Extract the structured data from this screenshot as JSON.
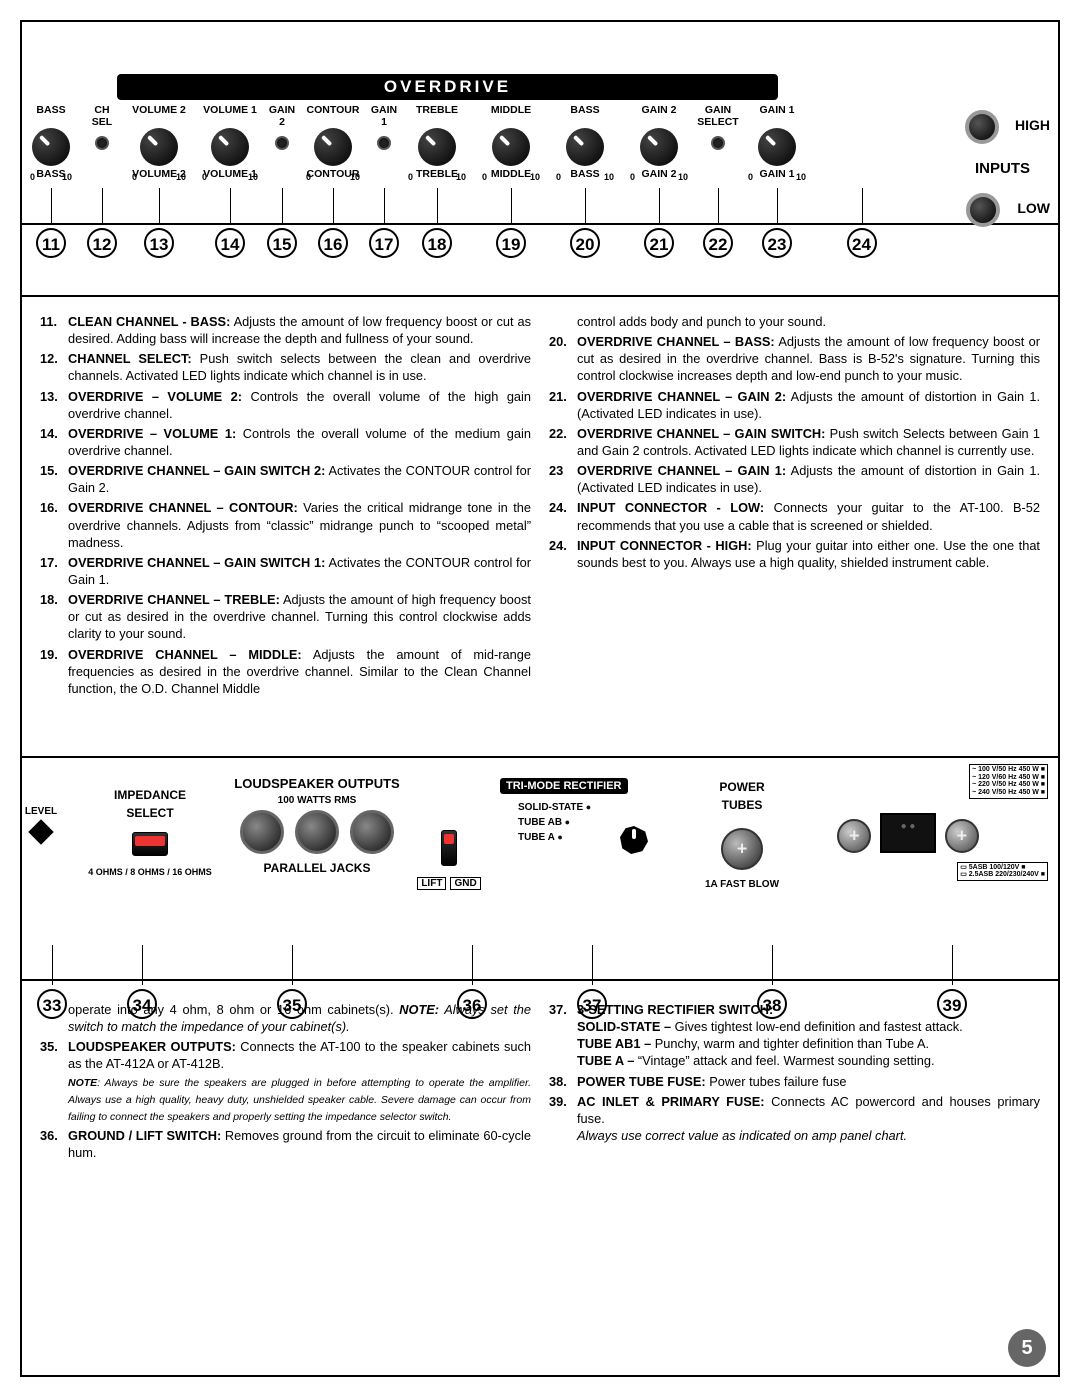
{
  "page_number": "5",
  "front_panel": {
    "section_label": "OVERDRIVE",
    "knobs": [
      {
        "top": "BASS",
        "bot": "BASS",
        "range": [
          "0",
          "10"
        ]
      },
      {
        "top": "CH\nSEL",
        "bot": "",
        "switch": true
      },
      {
        "top": "VOLUME 2",
        "bot": "VOLUME 2",
        "range": [
          "0",
          "10"
        ]
      },
      {
        "top": "VOLUME 1",
        "bot": "VOLUME 1",
        "range": [
          "0",
          "10"
        ]
      },
      {
        "top": "GAIN 2",
        "bot": "",
        "switch": true,
        "small": true
      },
      {
        "top": "CONTOUR",
        "bot": "CONTOUR",
        "range": [
          "0",
          "10"
        ]
      },
      {
        "top": "GAIN 1",
        "bot": "",
        "switch": true,
        "small": true
      },
      {
        "top": "TREBLE",
        "bot": "TREBLE",
        "range": [
          "0",
          "10"
        ]
      },
      {
        "top": "MIDDLE",
        "bot": "MIDDLE",
        "range": [
          "0",
          "10"
        ]
      },
      {
        "top": "BASS",
        "bot": "BASS",
        "range": [
          "0",
          "10"
        ]
      },
      {
        "top": "GAIN 2",
        "bot": "GAIN 2",
        "range": [
          "0",
          "10"
        ]
      },
      {
        "top": "GAIN\nSELECT",
        "bot": "",
        "switch": true
      },
      {
        "top": "GAIN 1",
        "bot": "GAIN 1",
        "range": [
          "0",
          "10"
        ]
      }
    ],
    "inputs": {
      "title": "INPUTS",
      "high": "HIGH",
      "low": "LOW"
    },
    "callouts": [
      "11",
      "12",
      "13",
      "14",
      "15",
      "16",
      "17",
      "18",
      "19",
      "20",
      "21",
      "22",
      "23",
      "24"
    ]
  },
  "front_text_left": [
    {
      "n": "11.",
      "t": "<b>CLEAN CHANNEL - BASS:</b> Adjusts the amount of low frequency boost or cut as desired. Adding bass will increase the depth and fullness of your sound."
    },
    {
      "n": "12.",
      "t": "<b>CHANNEL SELECT:</b> Push switch selects between the clean and overdrive channels. Activated LED lights indicate which channel is in use."
    },
    {
      "n": "13.",
      "t": "<b>OVERDRIVE – VOLUME 2:</b> Controls the overall volume of the high gain overdrive channel."
    },
    {
      "n": "14.",
      "t": "<b>OVERDRIVE – VOLUME 1:</b> Controls the overall volume of the medium gain overdrive channel."
    },
    {
      "n": "15.",
      "t": "<b>OVERDRIVE CHANNEL – GAIN SWITCH 2:</b> Activates the CONTOUR control for Gain 2."
    },
    {
      "n": "16.",
      "t": "<b>OVERDRIVE CHANNEL – CONTOUR:</b> Varies the critical midrange tone in the overdrive channels. Adjusts from “classic” midrange punch to “scooped metal” madness."
    },
    {
      "n": "17.",
      "t": "<b>OVERDRIVE CHANNEL – GAIN SWITCH 1:</b> Activates the CONTOUR control for Gain 1."
    },
    {
      "n": "18.",
      "t": "<b>OVERDRIVE CHANNEL – TREBLE:</b> Adjusts the amount of high frequency boost or cut as desired in the overdrive channel. Turning this control clockwise adds clarity to your sound."
    },
    {
      "n": "19.",
      "t": "<b>OVERDRIVE CHANNEL – MIDDLE:</b> Adjusts the amount of mid-range frequencies as desired in the overdrive channel. Similar to the Clean Channel function, the O.D. Channel Middle"
    }
  ],
  "front_text_right": [
    {
      "n": "",
      "t": "control adds body and punch to your sound."
    },
    {
      "n": "20.",
      "t": "<b>OVERDRIVE CHANNEL – BASS:</b> Adjusts the amount of low frequency boost or cut as desired in the overdrive channel. Bass is B-52's signature. Turning this control clockwise increases depth and low-end punch to your music."
    },
    {
      "n": "21.",
      "t": "<b>OVERDRIVE CHANNEL – GAIN 2:</b> Adjusts the amount of distortion in Gain 1. (Activated LED indicates in use)."
    },
    {
      "n": "22.",
      "t": "<b>OVERDRIVE CHANNEL – GAIN SWITCH:</b> Push switch Selects between Gain 1 and Gain 2 controls. Activated LED lights indicate which channel is currently use."
    },
    {
      "n": "23",
      "t": "<b>OVERDRIVE CHANNEL – GAIN 1:</b> Adjusts the amount of distortion in Gain 1. (Activated LED indicates in use)."
    },
    {
      "n": "24.",
      "t": "<b>INPUT CONNECTOR - LOW:</b> Connects your guitar to the AT-100. B-52 recommends that you use a cable that is screened or shielded."
    },
    {
      "n": "24.",
      "t": "<b>INPUT CONNECTOR - HIGH:</b> Plug your guitar into either one. Use the one that sounds best to you. Always use a high quality, shielded instrument cable."
    }
  ],
  "rear_panel": {
    "level": "LEVEL",
    "imp": {
      "title": "IMPEDANCE",
      "sub": "SELECT",
      "foot": "4 OHMS / 8 OHMS / 16 OHMS"
    },
    "ls": {
      "title": "LOUDSPEAKER OUTPUTS",
      "sub": "100 WATTS RMS",
      "foot": "PARALLEL JACKS"
    },
    "lift": {
      "a": "LIFT",
      "b": "GND"
    },
    "tri": {
      "title": "TRI-MODE RECTIFIER",
      "a": "SOLID-STATE",
      "b": "TUBE AB",
      "c": "TUBE A"
    },
    "pt": {
      "title": "POWER",
      "sub": "TUBES",
      "foot": "1A FAST BLOW"
    },
    "volt_lines": [
      "100 V/50 Hz 450 W",
      "120 V/60 Hz 450 W",
      "220 V/50 Hz 450 W",
      "240 V/50 Hz 450 W"
    ],
    "fuse_lines": [
      "5ASB 100/120V",
      "2.5ASB 220/230/240V"
    ],
    "callouts": [
      "33",
      "34",
      "35",
      "36",
      "37",
      "38",
      "39"
    ]
  },
  "rear_text_left": [
    {
      "n": "",
      "t": "operate into any 4 ohm, 8 ohm or 16 ohm cabinets(s). <em><b>NOTE:</b> Always set the switch to match the impedance of your cabinet(s).</em>"
    },
    {
      "n": "35.",
      "t": "<b>LOUDSPEAKER OUTPUTS:</b> Connects the AT-100 to the speaker cabinets such as the AT-412A or AT-412B.<br><span style='font-size:10.5px'><em><b>NOTE</b>: Always be sure the speakers are plugged in before attempting to operate the amplifier. Always use a high quality, heavy duty, unshielded speaker cable. Severe damage can occur from failing to connect the speakers and properly setting the impedance selector switch.</em></span>"
    },
    {
      "n": "36.",
      "t": "<b>GROUND / LIFT SWITCH:</b> Removes ground from the circuit to eliminate 60-cycle hum."
    }
  ],
  "rear_text_right": [
    {
      "n": "37.",
      "t": "<b>3-SETTING RECTIFIER SWITCH:</b><br><b>SOLID-STATE –</b> Gives tightest low-end definition and fastest attack.<br><b>TUBE AB1 –</b> Punchy, warm and tighter definition than Tube A.<br><b>TUBE A –</b> “Vintage” attack and feel. Warmest sounding setting."
    },
    {
      "n": "38.",
      "t": "<b>POWER TUBE FUSE:</b> Power tubes failure fuse"
    },
    {
      "n": "39.",
      "t": "<b>AC INLET & PRIMARY FUSE:</b>  Connects AC powercord and houses primary fuse.<br><em>Always use correct value as indicated on amp panel chart.</em>"
    }
  ]
}
